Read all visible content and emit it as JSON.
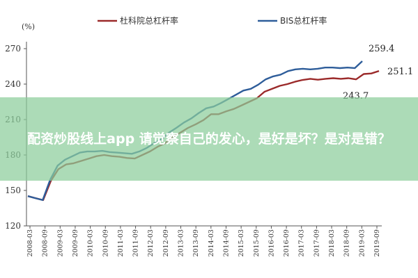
{
  "chart_data": {
    "type": "line",
    "unit_label": "(%)",
    "x_labels": [
      "2008-03",
      "2008-09",
      "2009-03",
      "2009-09",
      "2010-03",
      "2010-09",
      "2011-03",
      "2011-09",
      "2012-03",
      "2012-09",
      "2013-03",
      "2013-09",
      "2014-03",
      "2014-09",
      "2015-03",
      "2015-09",
      "2016-03",
      "2016-09",
      "2017-03",
      "2017-09",
      "2018-03",
      "2018-09",
      "2019-03",
      "2019-09"
    ],
    "y_ticks": [
      120,
      150,
      180,
      210,
      240,
      270
    ],
    "ylim": [
      120,
      270
    ],
    "grid": false,
    "legend_position": "top",
    "series": [
      {
        "name": "杜科院总杠杆率",
        "color": "#9b2a2a",
        "values": [
          145.2,
          143.5,
          141.8,
          158.0,
          168.0,
          172.0,
          173.0,
          175.0,
          177.0,
          179.0,
          180.0,
          179.0,
          178.5,
          177.5,
          177.0,
          180.0,
          183.0,
          187.0,
          190.0,
          195.5,
          199.0,
          203.0,
          206.0,
          209.5,
          214.5,
          214.5,
          217.0,
          219.0,
          222.0,
          225.0,
          228.0,
          233.5,
          236.0,
          238.5,
          240.0,
          242.0,
          243.5,
          244.5,
          243.7,
          244.5,
          245.0,
          244.5,
          245.0,
          244.0,
          248.5,
          249.0,
          251.1
        ]
      },
      {
        "name": "BIS总杠杆率",
        "color": "#2e5d9a",
        "values": [
          145.2,
          143.5,
          141.8,
          159.0,
          171.0,
          176.0,
          179.0,
          182.0,
          183.0,
          183.0,
          183.5,
          182.5,
          182.0,
          181.5,
          181.0,
          183.0,
          186.0,
          190.0,
          193.5,
          199.0,
          203.0,
          207.5,
          211.0,
          215.5,
          219.5,
          221.0,
          224.0,
          227.5,
          231.0,
          234.5,
          236.0,
          239.5,
          244.0,
          246.5,
          248.0,
          251.0,
          252.5,
          253.0,
          252.5,
          253.0,
          254.0,
          254.0,
          253.5,
          254.0,
          253.5,
          259.4
        ]
      }
    ],
    "annotations": [
      "259.4",
      "251.1",
      "243.7"
    ]
  },
  "overlay_text": "配资炒股线上app 请觉察自己的发心，是好是坏？是对是错？"
}
